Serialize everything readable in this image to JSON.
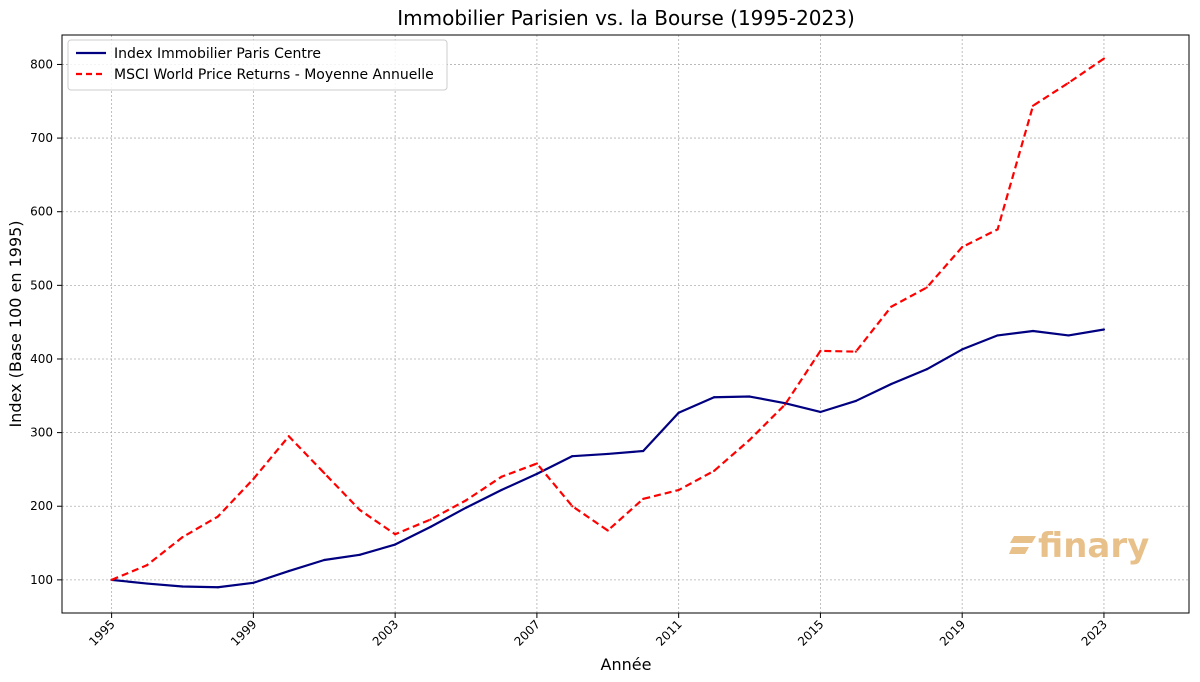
{
  "chart_data": {
    "type": "line",
    "title": "Immobilier Parisien vs. la Bourse (1995-2023)",
    "xlabel": "Année",
    "ylabel": "Index (Base 100 en 1995)",
    "xlim": [
      1993.6,
      2025.4
    ],
    "ylim": [
      55,
      840
    ],
    "xticks": [
      1995,
      1999,
      2003,
      2007,
      2011,
      2015,
      2019,
      2023
    ],
    "yticks": [
      100,
      200,
      300,
      400,
      500,
      600,
      700,
      800
    ],
    "grid": true,
    "legend_position": "top-left",
    "x": [
      1995,
      1996,
      1997,
      1998,
      1999,
      2000,
      2001,
      2002,
      2003,
      2004,
      2005,
      2006,
      2007,
      2008,
      2009,
      2010,
      2011,
      2012,
      2013,
      2014,
      2015,
      2016,
      2017,
      2018,
      2019,
      2020,
      2021,
      2022,
      2023
    ],
    "series": [
      {
        "name": "Index Immobilier Paris Centre",
        "color": "#000080",
        "style": "solid",
        "values": [
          100,
          95,
          91,
          90,
          96,
          112,
          127,
          134,
          148,
          172,
          198,
          222,
          244,
          268,
          271,
          275,
          327,
          348,
          349,
          340,
          328,
          343,
          366,
          386,
          413,
          432,
          438,
          432,
          440
        ]
      },
      {
        "name": "MSCI World Price Returns - Moyenne Annuelle",
        "color": "#ff0000",
        "style": "dashed",
        "values": [
          100,
          120,
          158,
          186,
          237,
          295,
          245,
          195,
          162,
          182,
          208,
          240,
          258,
          200,
          167,
          210,
          222,
          248,
          290,
          338,
          411,
          410,
          471,
          497,
          552,
          576,
          744,
          775,
          808
        ]
      }
    ]
  },
  "watermark": {
    "text": "finary",
    "color": "#e8c08a",
    "icon": "finary-logo-icon"
  }
}
